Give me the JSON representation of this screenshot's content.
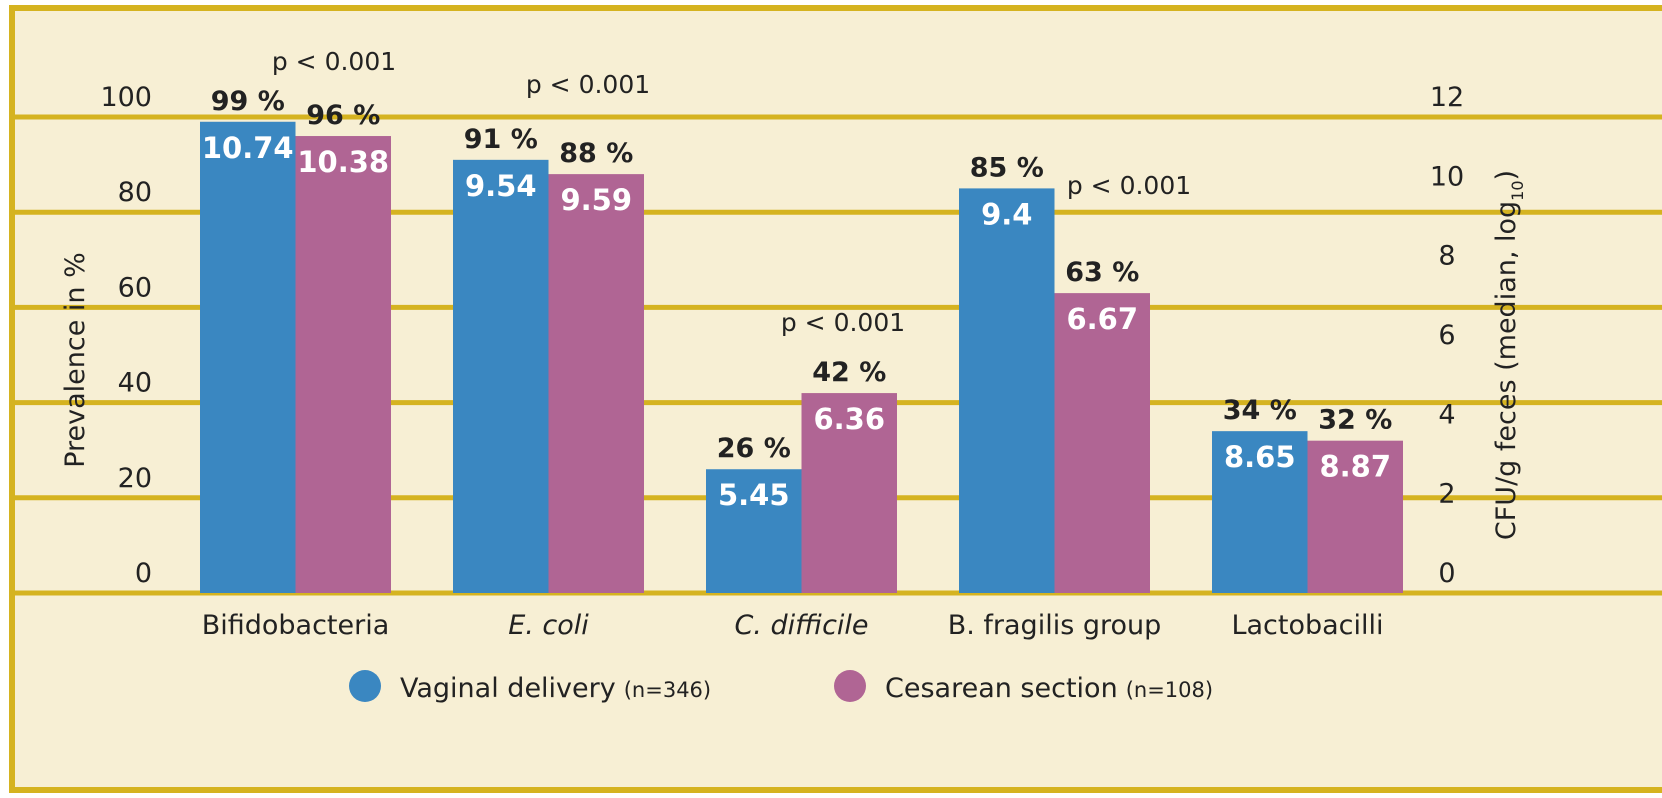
{
  "chart_data": {
    "type": "bar",
    "categories": [
      "Bifidobacteria",
      "E. coli",
      "C. difficile",
      "B. fragilis group",
      "Lactobacilli"
    ],
    "series": [
      {
        "name": "Vaginal delivery",
        "note": "(n=346)",
        "color": "#3a87c1",
        "values": [
          99,
          91,
          26,
          85,
          34
        ],
        "value_labels": [
          "99 %",
          "91 %",
          "26 %",
          "85 %",
          "34 %"
        ],
        "cfu_values": [
          10.74,
          9.54,
          5.45,
          9.4,
          8.65
        ]
      },
      {
        "name": "Cesarean section",
        "note": "(n=108)",
        "color": "#b06594",
        "values": [
          96,
          88,
          42,
          63,
          32
        ],
        "value_labels": [
          "96 %",
          "88 %",
          "42 %",
          "63 %",
          "32 %"
        ],
        "cfu_values": [
          10.38,
          9.59,
          6.36,
          6.67,
          8.87
        ]
      }
    ],
    "ylabel": "Prevalence in %",
    "y2label": {
      "text": "CFU/g feces (median, log",
      "subscript": "10",
      "end": ")"
    },
    "ylim": [
      0,
      100
    ],
    "yticks": [
      0,
      20,
      40,
      60,
      80,
      100
    ],
    "y2lim": [
      0,
      12
    ],
    "y2ticks": [
      0,
      2,
      4,
      6,
      8,
      10,
      12
    ],
    "grid": true,
    "annotations": [
      "p < 0.001",
      "p < 0.001",
      "p < 0.001",
      "p < 0.001"
    ],
    "legend": "bottom"
  }
}
